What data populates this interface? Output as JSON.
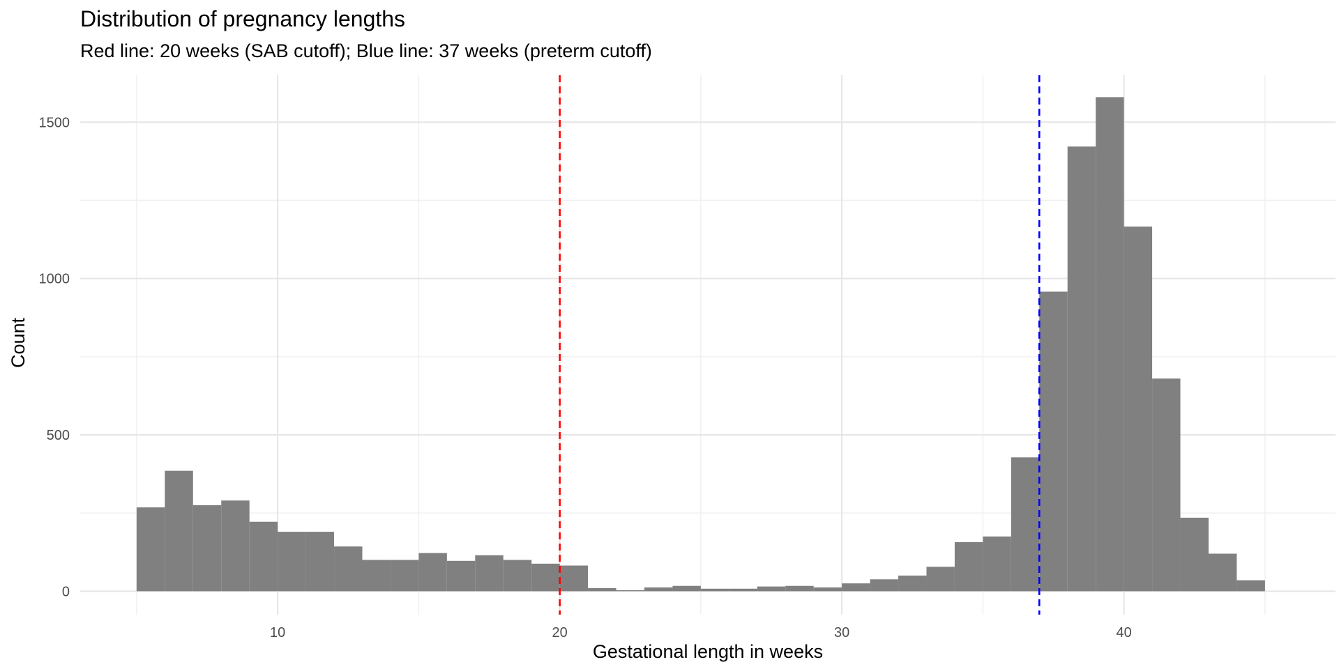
{
  "chart_data": {
    "type": "bar",
    "title": "Distribution of pregnancy lengths",
    "subtitle": "Red line: 20 weeks (SAB cutoff); Blue line: 37 weeks (preterm cutoff)",
    "xlabel": "Gestational length in weeks",
    "ylabel": "Count",
    "bin_width": 1,
    "bins": [
      {
        "x": 5.5,
        "count": 268
      },
      {
        "x": 6.5,
        "count": 385
      },
      {
        "x": 7.5,
        "count": 275
      },
      {
        "x": 8.5,
        "count": 290
      },
      {
        "x": 9.5,
        "count": 222
      },
      {
        "x": 10.5,
        "count": 190
      },
      {
        "x": 11.5,
        "count": 190
      },
      {
        "x": 12.5,
        "count": 143
      },
      {
        "x": 13.5,
        "count": 100
      },
      {
        "x": 14.5,
        "count": 100
      },
      {
        "x": 15.5,
        "count": 122
      },
      {
        "x": 16.5,
        "count": 97
      },
      {
        "x": 17.5,
        "count": 115
      },
      {
        "x": 18.5,
        "count": 100
      },
      {
        "x": 19.5,
        "count": 88
      },
      {
        "x": 20.5,
        "count": 82
      },
      {
        "x": 21.5,
        "count": 10
      },
      {
        "x": 22.5,
        "count": 3
      },
      {
        "x": 23.5,
        "count": 12
      },
      {
        "x": 24.5,
        "count": 17
      },
      {
        "x": 25.5,
        "count": 8
      },
      {
        "x": 26.5,
        "count": 8
      },
      {
        "x": 27.5,
        "count": 15
      },
      {
        "x": 28.5,
        "count": 17
      },
      {
        "x": 29.5,
        "count": 12
      },
      {
        "x": 30.5,
        "count": 25
      },
      {
        "x": 31.5,
        "count": 38
      },
      {
        "x": 32.5,
        "count": 50
      },
      {
        "x": 33.5,
        "count": 78
      },
      {
        "x": 34.5,
        "count": 157
      },
      {
        "x": 35.5,
        "count": 175
      },
      {
        "x": 36.5,
        "count": 428
      },
      {
        "x": 37.5,
        "count": 958
      },
      {
        "x": 38.5,
        "count": 1422
      },
      {
        "x": 39.5,
        "count": 1580
      },
      {
        "x": 40.5,
        "count": 1166
      },
      {
        "x": 41.5,
        "count": 680
      },
      {
        "x": 42.5,
        "count": 235
      },
      {
        "x": 43.5,
        "count": 120
      },
      {
        "x": 44.5,
        "count": 35
      }
    ],
    "xlim": [
      3.0,
      47.5
    ],
    "ylim": [
      -75,
      1650
    ],
    "x_ticks": [
      10,
      20,
      30,
      40
    ],
    "x_tick_labels": [
      "10",
      "20",
      "30",
      "40"
    ],
    "x_minor_ticks": [
      5,
      15,
      25,
      35,
      45
    ],
    "y_ticks": [
      0,
      500,
      1000,
      1500
    ],
    "y_tick_labels": [
      "0",
      "500",
      "1000",
      "1500"
    ],
    "y_minor_ticks": [
      250,
      750,
      1250
    ],
    "reference_lines": [
      {
        "x": 20,
        "color": "#ff0000",
        "style": "dashed"
      },
      {
        "x": 37,
        "color": "#0000ff",
        "style": "dashed"
      }
    ],
    "bar_color": "#808080",
    "grid": true,
    "legend": "none"
  }
}
